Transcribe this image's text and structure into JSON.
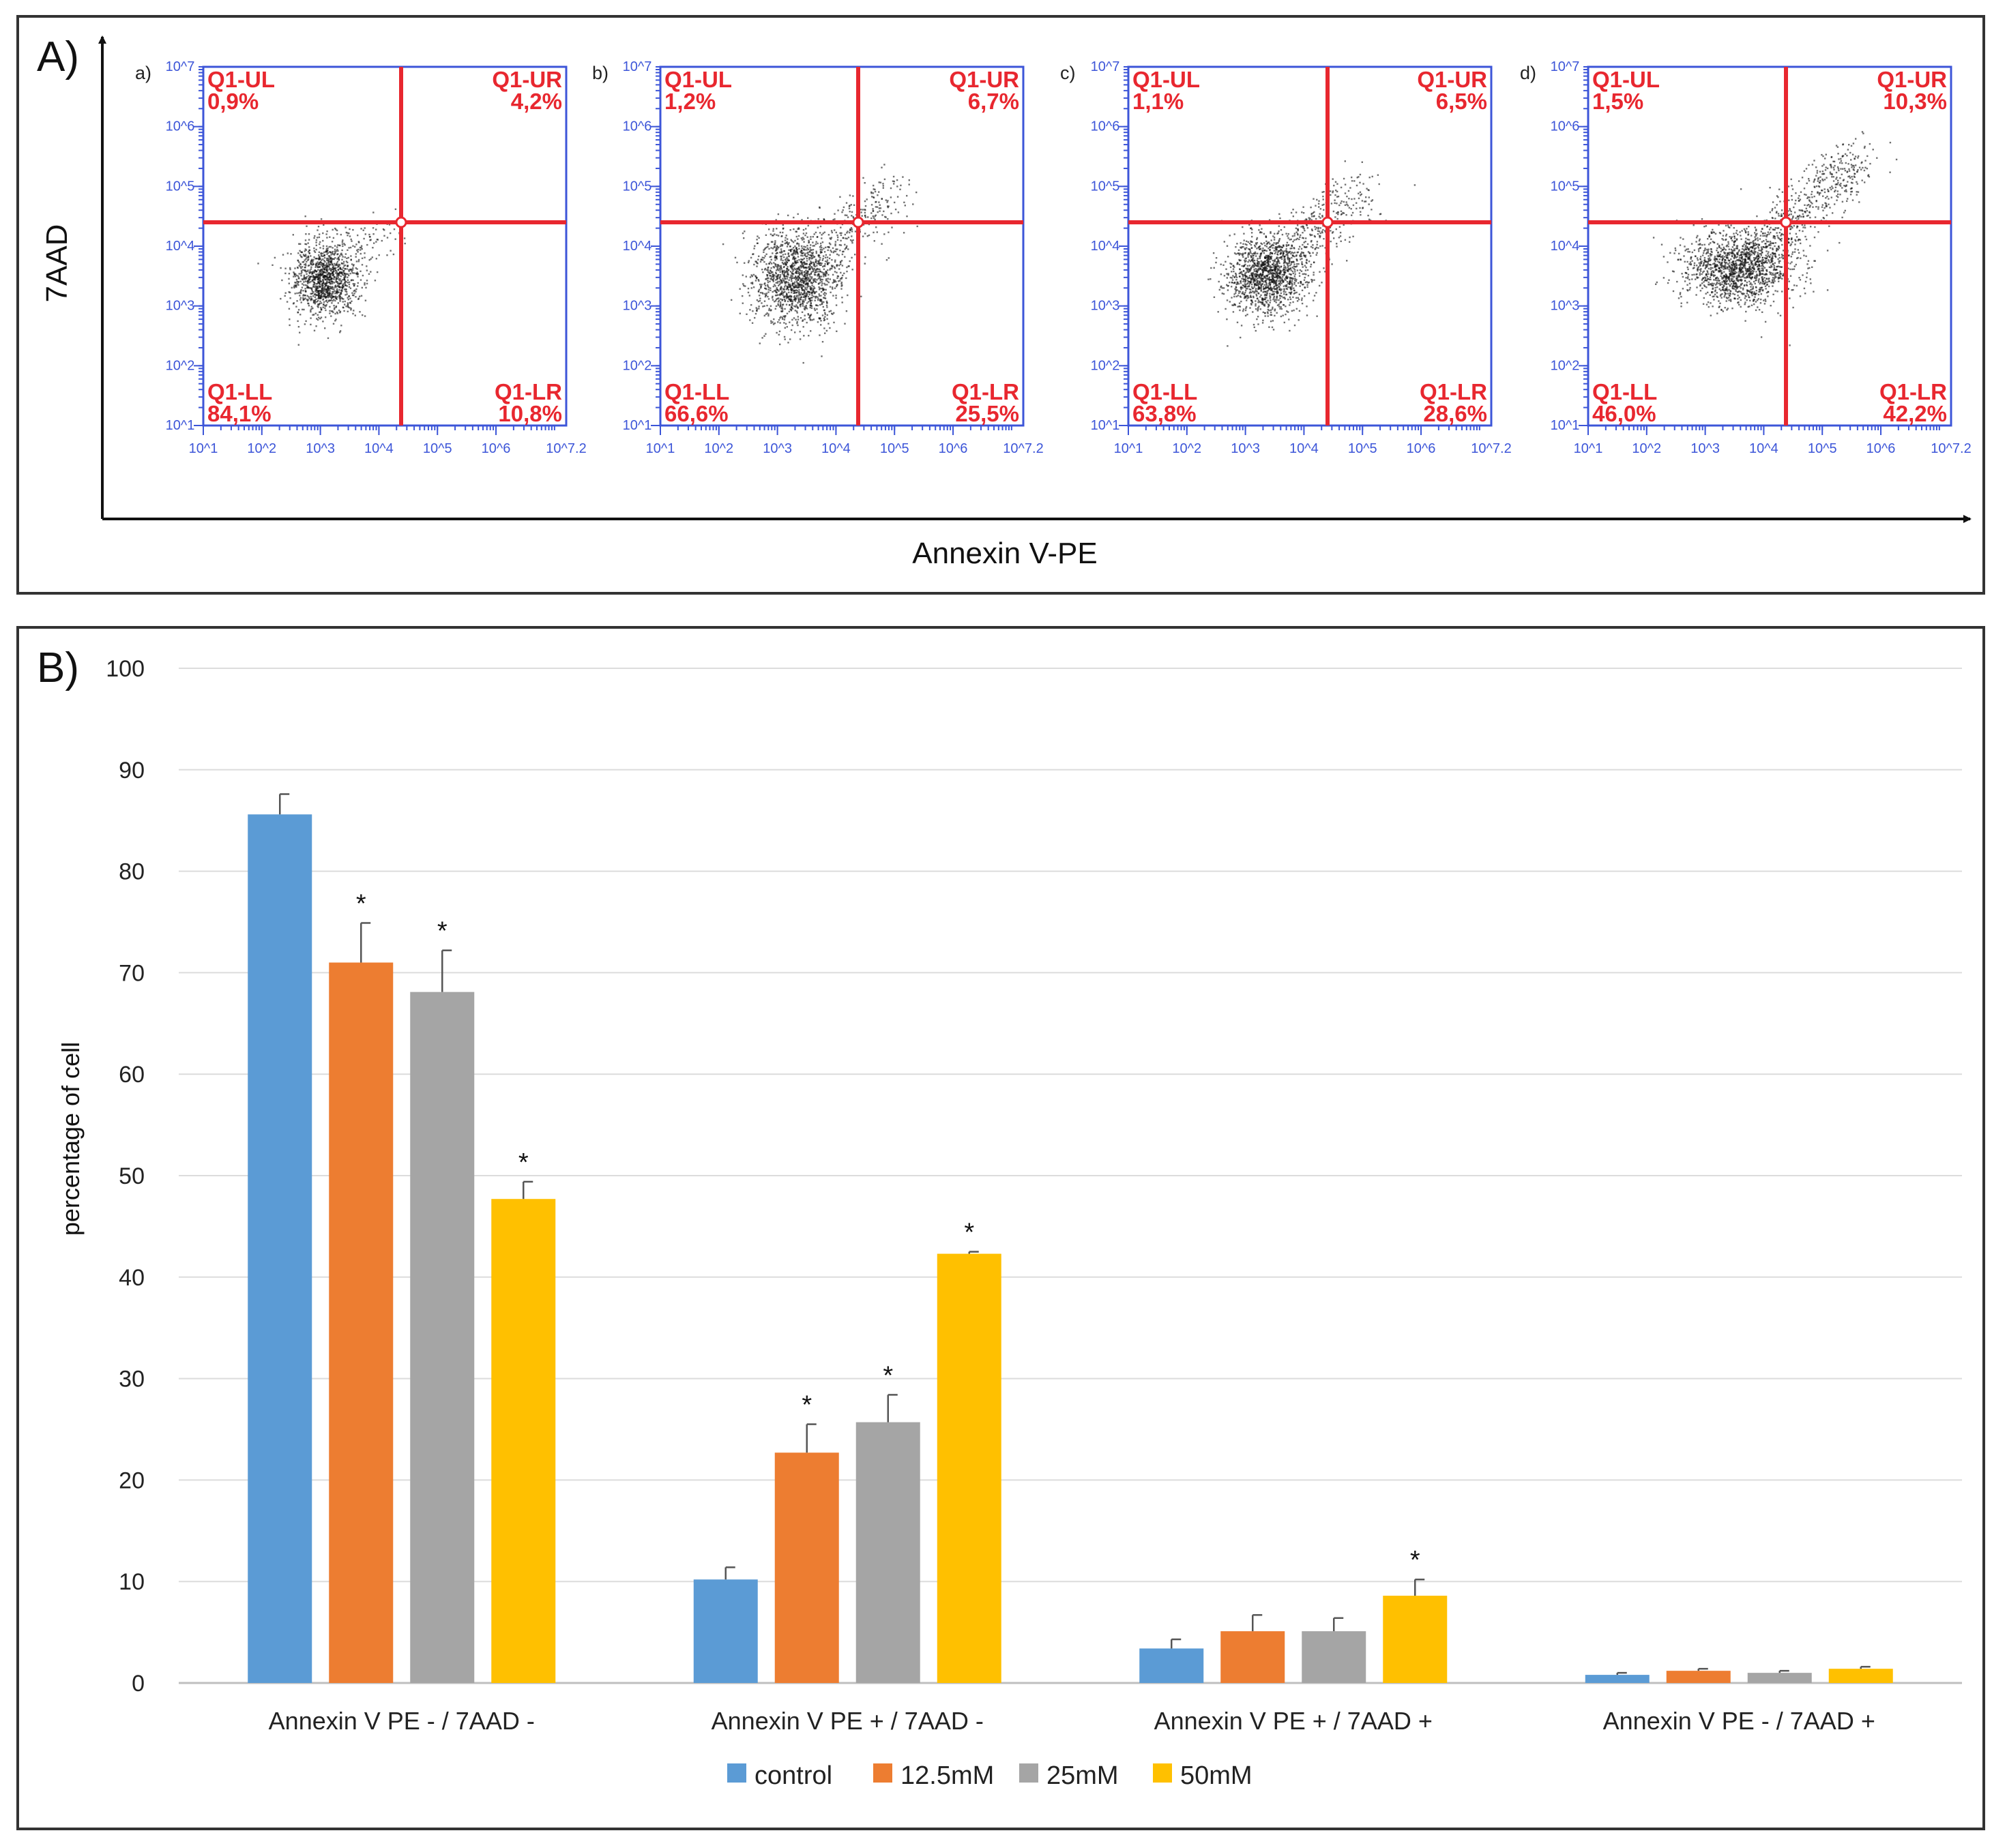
{
  "panel_a": {
    "label": "A)",
    "y_axis_label": "7AAD",
    "x_axis_label": "Annexin V-PE",
    "plots": [
      {
        "label": "a)",
        "UL_name": "Q1-UL",
        "UL_val": "0,9%",
        "UR_name": "Q1-UR",
        "UR_val": "4,2%",
        "LL_name": "Q1-LL",
        "LL_val": "84,1%",
        "LR_name": "Q1-LR",
        "LR_val": "10,8%"
      },
      {
        "label": "b)",
        "UL_name": "Q1-UL",
        "UL_val": "1,2%",
        "UR_name": "Q1-UR",
        "UR_val": "6,7%",
        "LL_name": "Q1-LL",
        "LL_val": "66,6%",
        "LR_name": "Q1-LR",
        "LR_val": "25,5%"
      },
      {
        "label": "c)",
        "UL_name": "Q1-UL",
        "UL_val": "1,1%",
        "UR_name": "Q1-UR",
        "UR_val": "6,5%",
        "LL_name": "Q1-LL",
        "LL_val": "63,8%",
        "LR_name": "Q1-LR",
        "LR_val": "28,6%"
      },
      {
        "label": "d)",
        "UL_name": "Q1-UL",
        "UL_val": "1,5%",
        "UR_name": "Q1-UR",
        "UR_val": "10,3%",
        "LL_name": "Q1-LL",
        "LL_val": "46,0%",
        "LR_name": "Q1-LR",
        "LR_val": "42,2%"
      }
    ],
    "x_ticks": [
      "10^1",
      "10^2",
      "10^3",
      "10^4",
      "10^5",
      "10^6",
      "10^7.2"
    ],
    "y_ticks": [
      "10^1",
      "10^2",
      "10^3",
      "10^4",
      "10^5",
      "10^6",
      "10^7"
    ],
    "gate_color": "#e8272f",
    "frame_color": "#3c55d8"
  },
  "panel_b": {
    "label": "B)"
  },
  "chart_data": {
    "type": "bar",
    "title": "",
    "xlabel": "",
    "ylabel": "percentage of cell",
    "ylim": [
      0,
      100
    ],
    "yticks": [
      0,
      10,
      20,
      30,
      40,
      50,
      60,
      70,
      80,
      90,
      100
    ],
    "grid": true,
    "legend_position": "bottom",
    "categories": [
      "Annexin V PE - / 7AAD -",
      "Annexin V PE + / 7AAD -",
      "Annexin V PE + / 7AAD +",
      "Annexin V PE - / 7AAD +"
    ],
    "series": [
      {
        "name": "control",
        "color": "#5b9bd5",
        "values": [
          85.6,
          10.2,
          3.4,
          0.8
        ],
        "errors": [
          2.0,
          1.2,
          0.9,
          0.2
        ],
        "significant": [
          false,
          false,
          false,
          false
        ]
      },
      {
        "name": "12.5mM",
        "color": "#ed7d31",
        "values": [
          71.0,
          22.7,
          5.1,
          1.2
        ],
        "errors": [
          3.9,
          2.8,
          1.6,
          0.2
        ],
        "significant": [
          true,
          true,
          false,
          false
        ]
      },
      {
        "name": "25mM",
        "color": "#a5a5a5",
        "values": [
          68.1,
          25.7,
          5.1,
          1.0
        ],
        "errors": [
          4.1,
          2.7,
          1.3,
          0.2
        ],
        "significant": [
          true,
          true,
          false,
          false
        ]
      },
      {
        "name": "50mM",
        "color": "#ffc000",
        "values": [
          47.7,
          42.3,
          8.6,
          1.4
        ],
        "errors": [
          1.7,
          0.2,
          1.6,
          0.2
        ],
        "significant": [
          true,
          true,
          true,
          false
        ]
      }
    ],
    "significance_marker": "*"
  }
}
